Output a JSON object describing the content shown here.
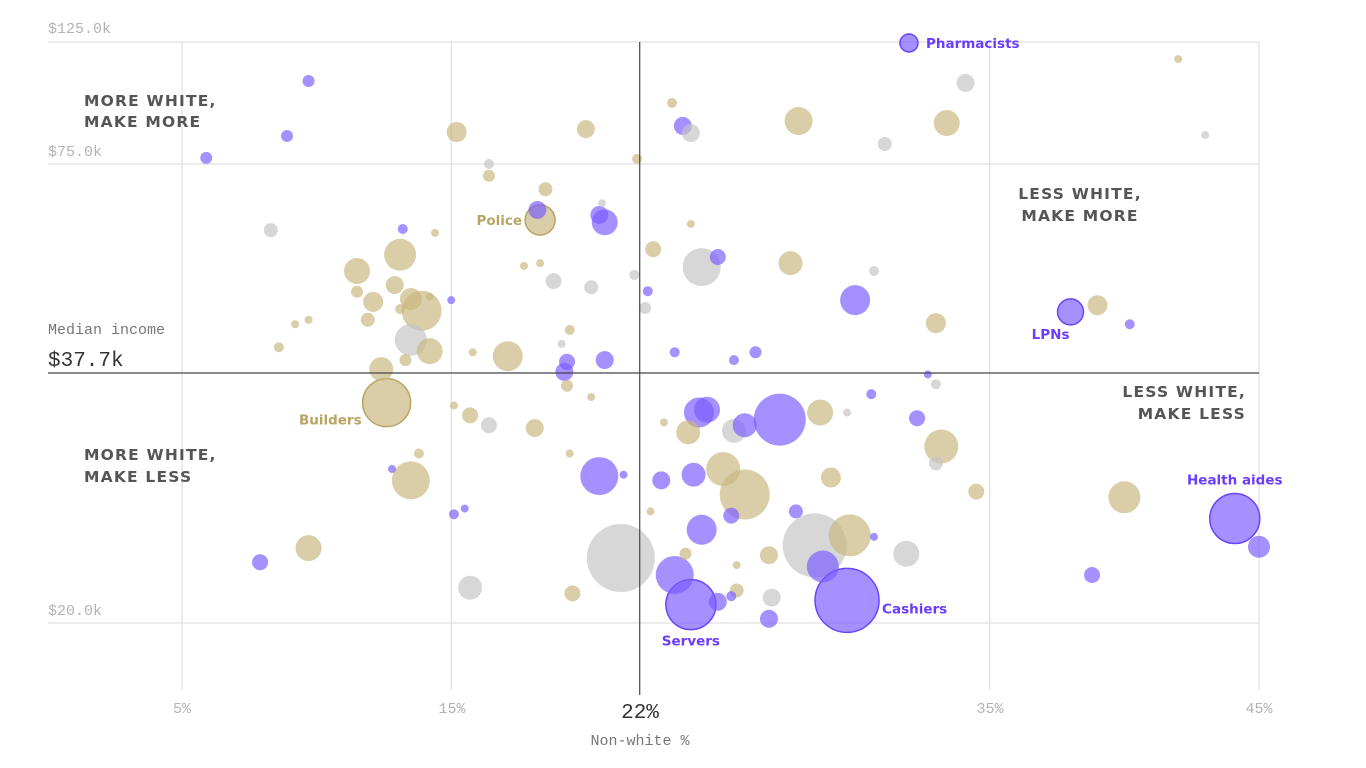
{
  "chart_data": {
    "type": "scatter",
    "subtype": "bubble",
    "xlabel": "Non-white %",
    "ylabel": "Median income",
    "xlim": [
      5,
      45
    ],
    "ylim": [
      20.0,
      125.0
    ],
    "x_ticks": [
      {
        "value": 5,
        "label": "5%"
      },
      {
        "value": 15,
        "label": "15%"
      },
      {
        "value": 35,
        "label": "35%"
      },
      {
        "value": 45,
        "label": "45%"
      }
    ],
    "y_ticks": [
      {
        "value": 125.0,
        "label": "$125.0k"
      },
      {
        "value": 75.0,
        "label": "$75.0k"
      },
      {
        "value": 20.0,
        "label": "$20.0k"
      }
    ],
    "x_median": {
      "value": 22,
      "label": "22%"
    },
    "y_median": {
      "value": 37.7,
      "label": "$37.7k",
      "title": "Median income"
    },
    "grid": true,
    "quadrant_labels": {
      "top_left": [
        "MORE WHITE,",
        "MAKE MORE"
      ],
      "top_right": [
        "LESS WHITE,",
        "MAKE MORE"
      ],
      "bottom_right": [
        "LESS WHITE,",
        "MAKE LESS"
      ],
      "bottom_left": [
        "MORE WHITE,",
        "MAKE LESS"
      ]
    },
    "colors": {
      "purple": "#7b5cff",
      "tan": "#c9b77f",
      "grey": "#c4c4c4",
      "quadrant_text": "#555555",
      "tan_label": "#b9a464"
    },
    "points_fields": [
      "non_white_pct",
      "median_income_k",
      "relative_size",
      "color_group",
      "label"
    ],
    "points": [
      [
        32.0,
        124.6,
        81,
        "purple",
        "Pharmacists"
      ],
      [
        34.1,
        108.2,
        81,
        "grey",
        ""
      ],
      [
        42.0,
        118.0,
        16,
        "tan",
        ""
      ],
      [
        43.0,
        86.9,
        16,
        "grey",
        ""
      ],
      [
        9.7,
        109.0,
        36,
        "purple",
        ""
      ],
      [
        8.9,
        86.5,
        36,
        "purple",
        ""
      ],
      [
        5.9,
        77.5,
        36,
        "purple",
        ""
      ],
      [
        15.2,
        88.1,
        100,
        "tan",
        ""
      ],
      [
        20.0,
        89.3,
        81,
        "tan",
        ""
      ],
      [
        23.2,
        100.0,
        25,
        "tan",
        ""
      ],
      [
        23.6,
        90.6,
        81,
        "purple",
        ""
      ],
      [
        23.9,
        87.7,
        81,
        "grey",
        ""
      ],
      [
        27.9,
        92.6,
        196,
        "tan",
        ""
      ],
      [
        33.4,
        91.8,
        169,
        "tan",
        ""
      ],
      [
        31.1,
        83.2,
        49,
        "grey",
        ""
      ],
      [
        21.9,
        77.1,
        25,
        "tan",
        ""
      ],
      [
        16.4,
        75.0,
        25,
        "grey",
        ""
      ],
      [
        16.4,
        72.9,
        36,
        "tan",
        ""
      ],
      [
        18.5,
        70.5,
        49,
        "tan",
        ""
      ],
      [
        20.6,
        68.0,
        16,
        "grey",
        ""
      ],
      [
        18.2,
        66.8,
        81,
        "purple",
        ""
      ],
      [
        18.3,
        65.0,
        225,
        "tan",
        "Police"
      ],
      [
        20.5,
        65.9,
        81,
        "purple",
        ""
      ],
      [
        20.7,
        64.6,
        169,
        "purple",
        ""
      ],
      [
        8.3,
        63.2,
        49,
        "grey",
        ""
      ],
      [
        13.2,
        63.4,
        25,
        "purple",
        ""
      ],
      [
        14.4,
        62.7,
        16,
        "tan",
        ""
      ],
      [
        23.9,
        64.3,
        16,
        "tan",
        ""
      ],
      [
        13.1,
        58.8,
        256,
        "tan",
        ""
      ],
      [
        11.5,
        55.9,
        169,
        "tan",
        ""
      ],
      [
        17.7,
        56.8,
        16,
        "tan",
        ""
      ],
      [
        18.3,
        57.3,
        16,
        "tan",
        ""
      ],
      [
        18.8,
        54.1,
        64,
        "grey",
        ""
      ],
      [
        20.2,
        53.0,
        49,
        "grey",
        ""
      ],
      [
        21.8,
        55.2,
        25,
        "grey",
        ""
      ],
      [
        22.5,
        59.8,
        64,
        "tan",
        ""
      ],
      [
        24.3,
        56.6,
        361,
        "grey",
        ""
      ],
      [
        24.9,
        58.4,
        64,
        "purple",
        ""
      ],
      [
        27.6,
        57.3,
        144,
        "tan",
        ""
      ],
      [
        30.7,
        55.9,
        25,
        "grey",
        ""
      ],
      [
        11.5,
        52.2,
        36,
        "tan",
        ""
      ],
      [
        12.1,
        50.4,
        100,
        "tan",
        ""
      ],
      [
        12.9,
        53.4,
        81,
        "tan",
        ""
      ],
      [
        13.5,
        50.9,
        121,
        "tan",
        ""
      ],
      [
        13.9,
        48.8,
        400,
        "tan",
        ""
      ],
      [
        14.2,
        51.3,
        16,
        "tan",
        ""
      ],
      [
        13.1,
        49.1,
        25,
        "tan",
        ""
      ],
      [
        15.0,
        50.7,
        16,
        "purple",
        ""
      ],
      [
        11.9,
        47.2,
        49,
        "tan",
        ""
      ],
      [
        9.7,
        47.2,
        16,
        "tan",
        ""
      ],
      [
        9.2,
        46.4,
        16,
        "tan",
        ""
      ],
      [
        8.6,
        42.3,
        25,
        "tan",
        ""
      ],
      [
        13.5,
        43.6,
        256,
        "grey",
        ""
      ],
      [
        13.3,
        40.0,
        36,
        "tan",
        ""
      ],
      [
        14.2,
        41.6,
        169,
        "tan",
        ""
      ],
      [
        15.8,
        41.4,
        16,
        "tan",
        ""
      ],
      [
        17.1,
        40.7,
        225,
        "tan",
        ""
      ],
      [
        19.4,
        45.4,
        25,
        "tan",
        ""
      ],
      [
        19.1,
        42.9,
        16,
        "grey",
        ""
      ],
      [
        19.3,
        39.7,
        64,
        "purple",
        ""
      ],
      [
        19.2,
        37.9,
        81,
        "purple",
        ""
      ],
      [
        20.7,
        40.0,
        81,
        "purple",
        ""
      ],
      [
        22.3,
        52.3,
        25,
        "purple",
        ""
      ],
      [
        22.2,
        49.3,
        36,
        "grey",
        ""
      ],
      [
        23.3,
        41.4,
        25,
        "purple",
        ""
      ],
      [
        25.5,
        40.0,
        25,
        "purple",
        ""
      ],
      [
        26.3,
        41.4,
        36,
        "purple",
        ""
      ],
      [
        30.0,
        50.7,
        225,
        "purple",
        ""
      ],
      [
        33.0,
        46.6,
        100,
        "tan",
        ""
      ],
      [
        38.0,
        48.6,
        169,
        "purple",
        "LPNs"
      ],
      [
        39.0,
        49.8,
        100,
        "tan",
        ""
      ],
      [
        40.2,
        46.4,
        25,
        "purple",
        ""
      ],
      [
        32.7,
        37.6,
        16,
        "purple",
        ""
      ],
      [
        33.0,
        36.9,
        25,
        "grey",
        ""
      ],
      [
        12.4,
        38.4,
        144,
        "tan",
        ""
      ],
      [
        12.6,
        35.6,
        576,
        "tan",
        "Builders"
      ],
      [
        15.1,
        35.4,
        16,
        "tan",
        ""
      ],
      [
        15.7,
        34.7,
        64,
        "tan",
        ""
      ],
      [
        16.4,
        34.0,
        64,
        "grey",
        ""
      ],
      [
        18.1,
        33.8,
        81,
        "tan",
        ""
      ],
      [
        19.3,
        36.8,
        36,
        "tan",
        ""
      ],
      [
        20.2,
        36.0,
        16,
        "tan",
        ""
      ],
      [
        13.8,
        32.0,
        25,
        "tan",
        ""
      ],
      [
        12.8,
        30.9,
        16,
        "purple",
        ""
      ],
      [
        13.5,
        30.1,
        361,
        "tan",
        ""
      ],
      [
        19.4,
        32.0,
        16,
        "tan",
        ""
      ],
      [
        20.5,
        30.4,
        361,
        "purple",
        ""
      ],
      [
        21.4,
        30.5,
        16,
        "purple",
        ""
      ],
      [
        15.1,
        27.7,
        25,
        "purple",
        ""
      ],
      [
        15.5,
        28.1,
        16,
        "purple",
        ""
      ],
      [
        7.9,
        24.3,
        64,
        "purple",
        ""
      ],
      [
        9.7,
        25.3,
        169,
        "tan",
        ""
      ],
      [
        15.7,
        22.5,
        144,
        "grey",
        ""
      ],
      [
        19.5,
        22.1,
        64,
        "tan",
        ""
      ],
      [
        21.3,
        24.6,
        1156,
        "grey",
        ""
      ],
      [
        22.9,
        34.2,
        16,
        "tan",
        ""
      ],
      [
        23.8,
        33.5,
        144,
        "tan",
        ""
      ],
      [
        24.2,
        34.9,
        225,
        "purple",
        ""
      ],
      [
        24.5,
        35.1,
        169,
        "purple",
        ""
      ],
      [
        25.5,
        33.6,
        144,
        "grey",
        ""
      ],
      [
        25.9,
        34.0,
        144,
        "purple",
        ""
      ],
      [
        27.2,
        34.4,
        676,
        "purple",
        ""
      ],
      [
        28.7,
        34.9,
        169,
        "tan",
        ""
      ],
      [
        29.7,
        34.9,
        16,
        "grey",
        ""
      ],
      [
        30.6,
        36.2,
        25,
        "purple",
        ""
      ],
      [
        32.3,
        34.5,
        64,
        "purple",
        ""
      ],
      [
        33.2,
        32.5,
        289,
        "tan",
        ""
      ],
      [
        33.0,
        31.3,
        49,
        "grey",
        ""
      ],
      [
        29.1,
        30.3,
        100,
        "tan",
        ""
      ],
      [
        25.1,
        30.9,
        289,
        "tan",
        ""
      ],
      [
        25.9,
        29.1,
        625,
        "tan",
        ""
      ],
      [
        22.8,
        30.1,
        81,
        "purple",
        ""
      ],
      [
        24.0,
        30.5,
        144,
        "purple",
        ""
      ],
      [
        25.4,
        27.6,
        64,
        "purple",
        ""
      ],
      [
        22.4,
        27.9,
        16,
        "tan",
        ""
      ],
      [
        24.3,
        26.6,
        225,
        "purple",
        ""
      ],
      [
        27.8,
        27.9,
        49,
        "purple",
        ""
      ],
      [
        28.5,
        25.5,
        1024,
        "grey",
        ""
      ],
      [
        29.8,
        26.2,
        441,
        "tan",
        ""
      ],
      [
        30.7,
        26.1,
        16,
        "purple",
        ""
      ],
      [
        31.9,
        24.9,
        169,
        "grey",
        ""
      ],
      [
        34.5,
        29.3,
        64,
        "tan",
        ""
      ],
      [
        40.0,
        28.9,
        256,
        "tan",
        ""
      ],
      [
        44.1,
        27.4,
        625,
        "purple",
        "Health aides"
      ],
      [
        45.0,
        25.4,
        121,
        "purple",
        ""
      ],
      [
        38.8,
        23.4,
        64,
        "purple",
        ""
      ],
      [
        23.7,
        24.9,
        36,
        "tan",
        ""
      ],
      [
        25.6,
        24.1,
        16,
        "tan",
        ""
      ],
      [
        26.8,
        24.8,
        81,
        "tan",
        ""
      ],
      [
        23.3,
        23.4,
        361,
        "purple",
        ""
      ],
      [
        28.8,
        24.0,
        256,
        "purple",
        ""
      ],
      [
        23.9,
        21.3,
        625,
        "purple",
        "Servers"
      ],
      [
        24.9,
        21.5,
        81,
        "purple",
        ""
      ],
      [
        25.4,
        21.9,
        25,
        "purple",
        ""
      ],
      [
        25.6,
        22.3,
        49,
        "tan",
        ""
      ],
      [
        26.9,
        21.8,
        81,
        "grey",
        ""
      ],
      [
        26.8,
        20.3,
        81,
        "purple",
        ""
      ],
      [
        29.7,
        21.6,
        1024,
        "purple",
        "Cashiers"
      ]
    ]
  }
}
